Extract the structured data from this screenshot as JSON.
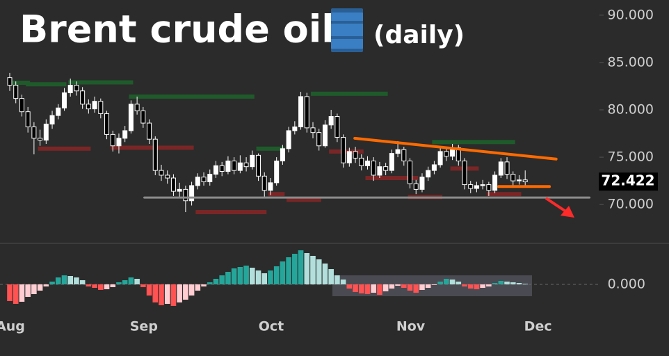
{
  "chart_data": [
    {
      "type": "candlestick",
      "title": "Brent crude oil",
      "subtitle": "(daily)",
      "open": [
        83.4,
        82.6,
        81.2,
        79.8,
        78.2,
        77.0,
        76.8,
        78.5,
        79.4,
        80.2,
        81.8,
        82.6,
        82.0,
        80.6,
        80.1,
        80.9,
        79.6,
        77.4,
        76.2,
        77.0,
        77.8,
        80.6,
        79.9,
        78.6,
        76.9,
        73.6,
        73.1,
        72.8,
        71.4,
        71.6,
        70.4,
        72.0,
        72.9,
        72.4,
        73.2,
        74.1,
        73.5,
        74.6,
        73.6,
        74.4,
        74.0,
        75.2,
        73.0,
        71.5,
        72.3,
        74.6,
        75.9,
        77.8,
        78.2,
        81.4,
        78.1,
        77.6,
        76.2,
        78.4,
        79.3,
        77.1,
        74.4,
        75.6,
        74.9,
        74.1,
        74.6,
        73.1,
        74.0,
        73.6,
        75.4,
        75.8,
        74.6,
        72.2,
        71.6,
        72.9,
        73.6,
        74.2,
        75.6,
        75.1,
        76.0,
        74.6,
        72.1,
        71.7,
        72.0,
        72.1,
        71.5,
        73.1,
        74.5,
        73.2,
        72.5,
        72.6,
        null,
        null,
        null,
        null,
        null,
        null,
        null,
        null,
        null,
        null,
        null,
        null
      ],
      "high": [
        83.9,
        83.0,
        81.6,
        80.3,
        78.7,
        77.9,
        79.0,
        79.9,
        80.6,
        82.3,
        83.3,
        83.0,
        82.4,
        81.1,
        81.4,
        81.2,
        79.9,
        77.8,
        77.5,
        78.3,
        81.0,
        81.4,
        80.3,
        79.0,
        77.2,
        74.2,
        73.6,
        73.2,
        72.3,
        72.0,
        72.4,
        73.3,
        73.4,
        73.7,
        74.6,
        74.5,
        75.1,
        75.0,
        75.2,
        75.0,
        75.7,
        75.4,
        73.4,
        72.8,
        75.0,
        76.3,
        78.2,
        78.8,
        81.9,
        81.8,
        78.7,
        78.0,
        78.9,
        80.0,
        79.6,
        77.4,
        76.0,
        76.1,
        75.3,
        75.1,
        75.0,
        74.5,
        74.4,
        75.8,
        76.7,
        76.1,
        74.9,
        72.6,
        73.3,
        74.0,
        74.6,
        76.0,
        76.0,
        76.4,
        76.3,
        74.9,
        72.5,
        72.4,
        72.6,
        72.4,
        73.5,
        74.9,
        75.0,
        73.5,
        73.1,
        73.6,
        null,
        null,
        null,
        null,
        null,
        null,
        null,
        null,
        null,
        null,
        null,
        null
      ],
      "low": [
        82.0,
        80.7,
        79.3,
        77.6,
        75.3,
        76.2,
        76.4,
        78.0,
        79.0,
        79.9,
        81.4,
        81.5,
        80.1,
        79.6,
        79.7,
        79.1,
        76.9,
        75.6,
        75.4,
        76.6,
        77.5,
        79.5,
        78.1,
        76.4,
        73.1,
        72.5,
        72.2,
        70.9,
        70.8,
        69.2,
        69.9,
        71.6,
        72.0,
        72.0,
        72.8,
        73.0,
        73.2,
        73.2,
        73.3,
        73.5,
        73.7,
        72.5,
        70.8,
        71.0,
        72.0,
        74.2,
        75.5,
        77.4,
        77.9,
        77.6,
        77.0,
        75.7,
        76.0,
        78.0,
        76.6,
        73.9,
        74.0,
        74.4,
        73.6,
        73.7,
        72.5,
        72.8,
        73.1,
        73.3,
        75.0,
        74.1,
        71.7,
        71.1,
        71.3,
        72.5,
        73.2,
        73.9,
        74.6,
        74.7,
        74.1,
        71.6,
        71.2,
        71.3,
        71.6,
        70.9,
        71.2,
        72.8,
        72.7,
        72.0,
        72.1,
        72.0,
        null,
        null,
        null,
        null,
        null,
        null,
        null,
        null,
        null,
        null,
        null,
        null
      ],
      "close": [
        82.6,
        81.2,
        79.8,
        78.2,
        77.0,
        76.8,
        78.5,
        79.4,
        80.2,
        81.8,
        82.6,
        82.0,
        80.6,
        80.1,
        80.9,
        79.6,
        77.4,
        76.2,
        77.0,
        77.8,
        80.6,
        79.9,
        78.6,
        76.9,
        73.6,
        73.1,
        72.8,
        71.4,
        71.6,
        70.4,
        72.0,
        72.9,
        72.4,
        73.2,
        74.1,
        73.5,
        74.6,
        73.6,
        74.4,
        74.0,
        75.2,
        73.0,
        71.5,
        72.3,
        74.6,
        75.9,
        77.8,
        78.2,
        81.4,
        78.1,
        77.6,
        76.2,
        78.4,
        79.3,
        77.1,
        74.4,
        75.6,
        74.9,
        74.1,
        74.6,
        73.1,
        74.0,
        73.6,
        75.4,
        75.8,
        74.6,
        72.2,
        71.6,
        72.9,
        73.6,
        74.2,
        75.6,
        75.1,
        76.0,
        74.6,
        72.1,
        71.7,
        72.0,
        72.1,
        71.5,
        73.1,
        74.5,
        73.2,
        72.5,
        72.6,
        72.4,
        null,
        null,
        null,
        null,
        null,
        null,
        null,
        null,
        null,
        null,
        null,
        null
      ],
      "up_color": "#ffffff",
      "down_color": "#000000",
      "wick_color": "#ffffff",
      "ylim": [
        65.9,
        91.6
      ],
      "yticks": [
        {
          "value": 70,
          "label": "70.000"
        },
        {
          "value": 75,
          "label": "75.000"
        },
        {
          "value": 80,
          "label": "80.000"
        },
        {
          "value": 85,
          "label": "85.000"
        },
        {
          "value": 90,
          "label": "90.000"
        }
      ],
      "last_price": 72.422,
      "levels": [
        {
          "color": "#1f5a2b",
          "x": [
            0,
            3
          ],
          "y": 82.86
        },
        {
          "color": "#1f5a2b",
          "x": [
            3,
            9
          ],
          "y": 82.7
        },
        {
          "color": "#1f5a2b",
          "x": [
            10,
            20
          ],
          "y": 82.9
        },
        {
          "color": "#1f5a2b",
          "x": [
            20,
            40
          ],
          "y": 81.4
        },
        {
          "color": "#1f5a2b",
          "x": [
            41,
            45
          ],
          "y": 75.9
        },
        {
          "color": "#1f5a2b",
          "x": [
            50,
            62
          ],
          "y": 81.7
        },
        {
          "color": "#1f5a2b",
          "x": [
            70,
            83
          ],
          "y": 76.6
        },
        {
          "color": "#7a2626",
          "x": [
            5,
            13
          ],
          "y": 75.9
        },
        {
          "color": "#7a2626",
          "x": [
            17,
            30
          ],
          "y": 76.0
        },
        {
          "color": "#7a2626",
          "x": [
            31,
            42
          ],
          "y": 69.2
        },
        {
          "color": "#7a2626",
          "x": [
            43,
            45
          ],
          "y": 71.1
        },
        {
          "color": "#7a2626",
          "x": [
            46,
            51
          ],
          "y": 70.5
        },
        {
          "color": "#7a2626",
          "x": [
            53,
            58
          ],
          "y": 75.6
        },
        {
          "color": "#7a2626",
          "x": [
            59,
            67
          ],
          "y": 72.8
        },
        {
          "color": "#7a2626",
          "x": [
            66,
            71
          ],
          "y": 70.8
        },
        {
          "color": "#7a2626",
          "x": [
            73,
            77
          ],
          "y": 73.8
        },
        {
          "color": "#7a2626",
          "x": [
            79,
            84
          ],
          "y": 71.1
        }
      ],
      "lines": [
        {
          "color": "#8c8c8c",
          "x": [
            22.2,
            95.6
          ],
          "y": [
            70.74,
            70.74
          ]
        },
        {
          "color": "#ff6a00",
          "x": [
            56.9,
            90.1
          ],
          "y": [
            77.0,
            74.8
          ]
        },
        {
          "color": "#ff6a00",
          "x": [
            80.6,
            89.0
          ],
          "y": [
            71.9,
            71.9
          ]
        }
      ]
    },
    {
      "type": "bar",
      "categories": [
        "Aug",
        null,
        null,
        null,
        null,
        null,
        null,
        null,
        null,
        null,
        null,
        null,
        null,
        null,
        null,
        null,
        null,
        null,
        null,
        null,
        null,
        null,
        "Sep",
        null,
        null,
        null,
        null,
        null,
        null,
        null,
        null,
        null,
        null,
        null,
        null,
        null,
        null,
        null,
        null,
        null,
        null,
        null,
        null,
        "Oct",
        null,
        null,
        null,
        null,
        null,
        null,
        null,
        null,
        null,
        null,
        null,
        null,
        null,
        null,
        null,
        null,
        null,
        null,
        null,
        null,
        null,
        null,
        "Nov",
        null,
        null,
        null,
        null,
        null,
        null,
        null,
        null,
        null,
        null,
        null,
        null,
        null,
        null,
        null,
        null,
        null,
        null,
        null,
        null,
        "Dec",
        null,
        null,
        null,
        null,
        null,
        null,
        null,
        null,
        null,
        null
      ],
      "values": [
        -2.4,
        -2.8,
        -2.5,
        -1.8,
        -1.4,
        -0.9,
        -0.3,
        0.4,
        1.0,
        1.3,
        1.2,
        1.0,
        0.6,
        -0.3,
        -0.5,
        -0.8,
        -0.7,
        -0.4,
        0.3,
        0.6,
        1.0,
        0.8,
        -0.4,
        -1.6,
        -2.6,
        -3.0,
        -2.8,
        -3.1,
        -2.6,
        -2.2,
        -1.6,
        -0.9,
        -0.3,
        0.3,
        0.8,
        1.3,
        1.8,
        2.3,
        2.5,
        2.7,
        2.4,
        2.0,
        1.6,
        2.0,
        2.6,
        3.3,
        3.9,
        4.4,
        4.9,
        4.5,
        4.1,
        3.6,
        3.0,
        2.2,
        1.3,
        0.7,
        -0.6,
        -1.1,
        -1.3,
        -1.4,
        -1.2,
        -1.5,
        -1.0,
        -0.6,
        -0.2,
        -0.5,
        -0.9,
        -1.2,
        -0.8,
        -0.5,
        -0.1,
        0.4,
        0.8,
        0.7,
        0.4,
        -0.3,
        -0.6,
        -0.7,
        -0.5,
        -0.3,
        0.2,
        0.5,
        0.4,
        0.3,
        0.2,
        0.1,
        null,
        null,
        null,
        null,
        null,
        null,
        null,
        null,
        null,
        null,
        null,
        null
      ],
      "colors": [
        "#26a69a",
        "#b2dfdb",
        "#ff5252",
        "#ffcdd2"
      ],
      "ylim": [
        -4.1,
        5.4
      ],
      "yticks": [
        {
          "value": 0,
          "label": "0.000"
        }
      ]
    }
  ]
}
